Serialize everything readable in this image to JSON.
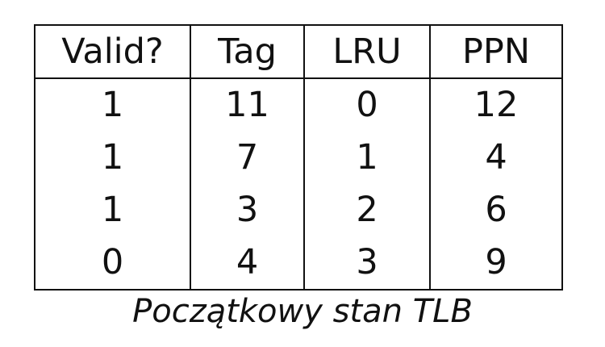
{
  "table": {
    "headers": [
      "Valid?",
      "Tag",
      "LRU",
      "PPN"
    ],
    "rows": [
      [
        "1",
        "11",
        "0",
        "12"
      ],
      [
        "1",
        "7",
        "1",
        "4"
      ],
      [
        "1",
        "3",
        "2",
        "6"
      ],
      [
        "0",
        "4",
        "3",
        "9"
      ]
    ]
  },
  "caption": "Początkowy stan TLB"
}
